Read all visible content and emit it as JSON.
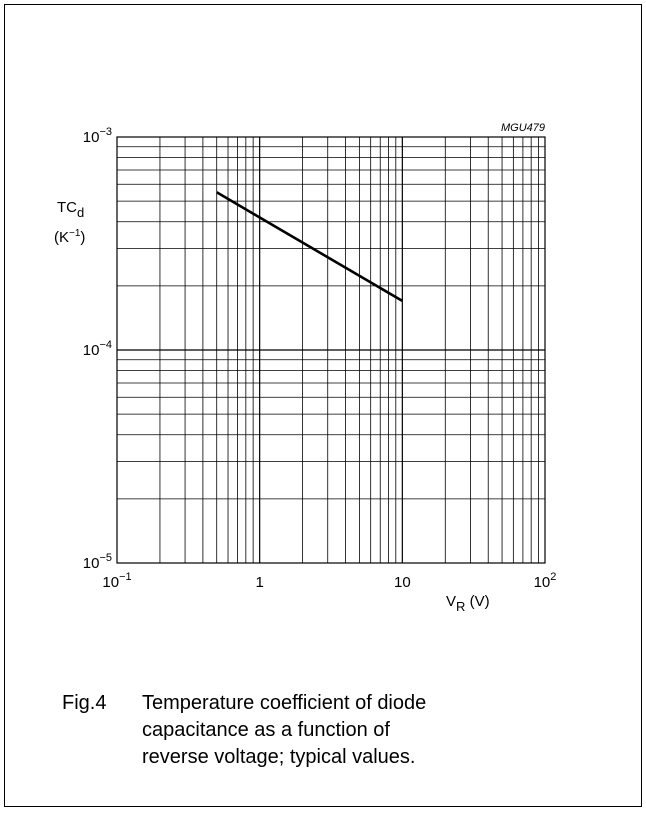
{
  "figure": {
    "code": "MGU479",
    "caption_label": "Fig.4",
    "caption_text": "Temperature coefficient of diode capacitance as a function of reverse voltage; typical values."
  },
  "chart_data": {
    "type": "line",
    "x_scale": "log",
    "y_scale": "log",
    "xlim": [
      0.1,
      100
    ],
    "ylim": [
      1e-05,
      0.001
    ],
    "grid": true,
    "x_ticks": [
      {
        "value": 0.1,
        "base": "10",
        "exp": "−1"
      },
      {
        "value": 1,
        "base": "1",
        "exp": ""
      },
      {
        "value": 10,
        "base": "10",
        "exp": ""
      },
      {
        "value": 100,
        "base": "10",
        "exp": "2"
      }
    ],
    "y_ticks": [
      {
        "value": 0.001,
        "base": "10",
        "exp": "−3"
      },
      {
        "value": 0.0001,
        "base": "10",
        "exp": "−4"
      },
      {
        "value": 1e-05,
        "base": "10",
        "exp": "−5"
      }
    ],
    "xlabel": {
      "main": "V",
      "sub": "R",
      "unit": " (V)"
    },
    "ylabel": {
      "main": "TC",
      "sub": "d",
      "unit_open": "(K",
      "unit_exp": "−1",
      "unit_close": ")"
    },
    "series": [
      {
        "x": [
          0.5,
          10
        ],
        "y": [
          0.00055,
          0.00017
        ]
      }
    ]
  }
}
